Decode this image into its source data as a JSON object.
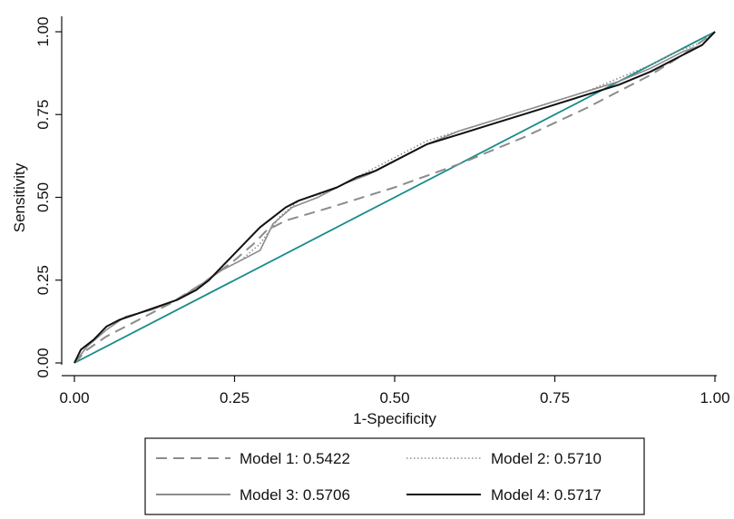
{
  "chart_data": {
    "type": "line",
    "title": "",
    "xlabel": "1-Specificity",
    "ylabel": "Sensitivity",
    "xlim": [
      0,
      1
    ],
    "ylim": [
      0,
      1
    ],
    "x_ticks": [
      "0.00",
      "0.25",
      "0.50",
      "0.75",
      "1.00"
    ],
    "y_ticks": [
      "0.00",
      "0.25",
      "0.50",
      "0.75",
      "1.00"
    ],
    "grid": false,
    "legend_position": "bottom",
    "reference_line": {
      "x": [
        0,
        1
      ],
      "y": [
        0,
        1
      ],
      "color": "#1a8a8a"
    },
    "series": [
      {
        "name": "Model 1: 0.5422",
        "style": "dashed",
        "color": "#8c8c8c",
        "x": [
          0.0,
          0.02,
          0.05,
          0.1,
          0.15,
          0.2,
          0.25,
          0.28,
          0.3,
          0.33,
          0.4,
          0.5,
          0.6,
          0.7,
          0.8,
          0.9,
          0.95,
          1.0
        ],
        "y": [
          0.0,
          0.04,
          0.08,
          0.13,
          0.18,
          0.24,
          0.31,
          0.36,
          0.4,
          0.43,
          0.47,
          0.53,
          0.6,
          0.68,
          0.77,
          0.87,
          0.93,
          1.0
        ]
      },
      {
        "name": "Model 2: 0.5710",
        "style": "dotted",
        "color": "#8c8c8c",
        "x": [
          0.0,
          0.02,
          0.05,
          0.08,
          0.12,
          0.16,
          0.2,
          0.23,
          0.26,
          0.29,
          0.32,
          0.35,
          0.4,
          0.45,
          0.5,
          0.55,
          0.6,
          0.65,
          0.7,
          0.75,
          0.8,
          0.85,
          0.9,
          0.94,
          0.97,
          1.0
        ],
        "y": [
          0.0,
          0.05,
          0.11,
          0.14,
          0.16,
          0.19,
          0.24,
          0.28,
          0.31,
          0.36,
          0.44,
          0.49,
          0.52,
          0.57,
          0.62,
          0.67,
          0.7,
          0.73,
          0.76,
          0.79,
          0.82,
          0.86,
          0.9,
          0.94,
          0.96,
          1.0
        ]
      },
      {
        "name": "Model 3: 0.5706",
        "style": "solid",
        "color": "#8c8c8c",
        "x": [
          0.0,
          0.02,
          0.05,
          0.08,
          0.12,
          0.16,
          0.2,
          0.23,
          0.26,
          0.29,
          0.31,
          0.34,
          0.38,
          0.42,
          0.46,
          0.5,
          0.55,
          0.6,
          0.65,
          0.7,
          0.75,
          0.8,
          0.85,
          0.9,
          0.95,
          0.98,
          1.0
        ],
        "y": [
          0.0,
          0.05,
          0.1,
          0.14,
          0.16,
          0.19,
          0.24,
          0.28,
          0.31,
          0.34,
          0.42,
          0.47,
          0.5,
          0.54,
          0.57,
          0.61,
          0.66,
          0.7,
          0.73,
          0.76,
          0.79,
          0.82,
          0.85,
          0.89,
          0.94,
          0.96,
          1.0
        ]
      },
      {
        "name": "Model 4: 0.5717",
        "style": "solid",
        "color": "#111111",
        "x": [
          0.0,
          0.01,
          0.03,
          0.05,
          0.07,
          0.1,
          0.13,
          0.16,
          0.19,
          0.21,
          0.23,
          0.25,
          0.27,
          0.29,
          0.31,
          0.33,
          0.35,
          0.38,
          0.41,
          0.44,
          0.47,
          0.5,
          0.55,
          0.6,
          0.65,
          0.7,
          0.75,
          0.8,
          0.85,
          0.9,
          0.95,
          0.98,
          1.0
        ],
        "y": [
          0.0,
          0.04,
          0.07,
          0.11,
          0.13,
          0.15,
          0.17,
          0.19,
          0.22,
          0.25,
          0.29,
          0.33,
          0.37,
          0.41,
          0.44,
          0.47,
          0.49,
          0.51,
          0.53,
          0.56,
          0.58,
          0.61,
          0.66,
          0.69,
          0.72,
          0.75,
          0.78,
          0.81,
          0.84,
          0.88,
          0.93,
          0.96,
          1.0
        ]
      }
    ]
  }
}
